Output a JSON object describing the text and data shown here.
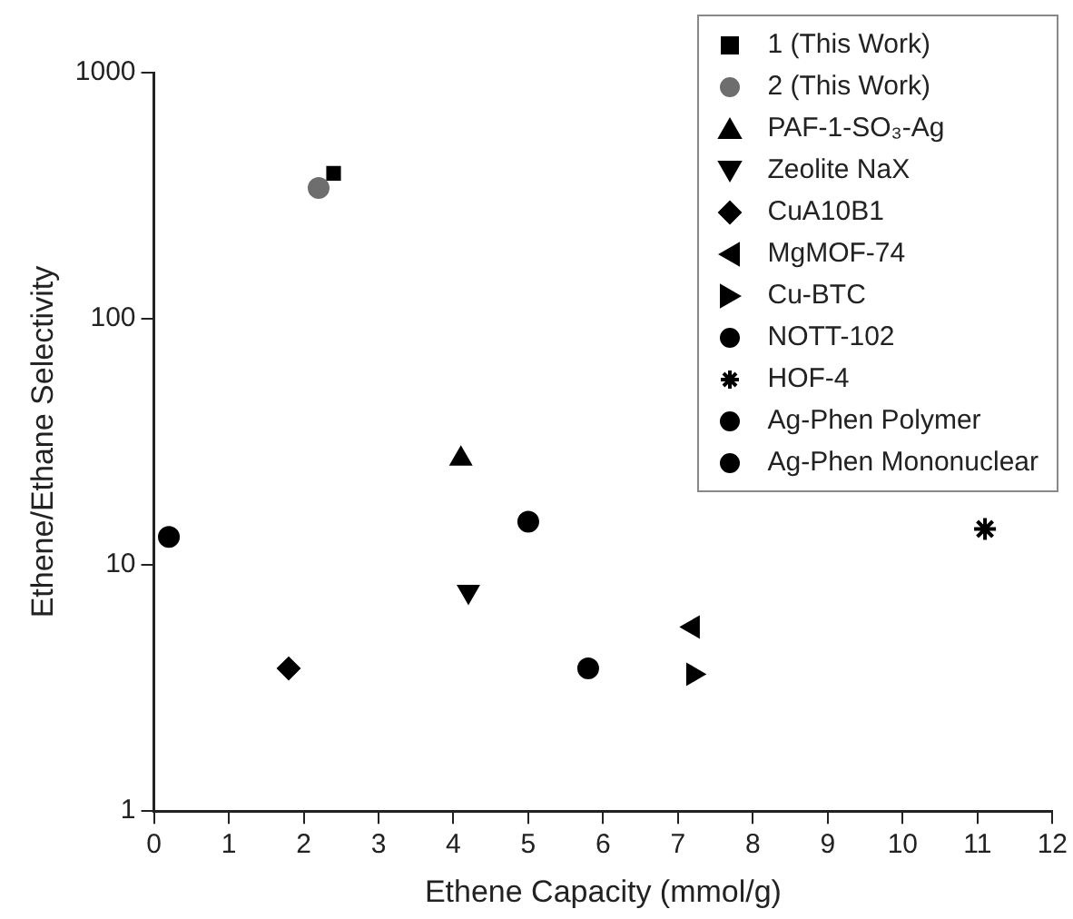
{
  "chart_data": {
    "type": "scatter",
    "xlabel": "Ethene Capacity (mmol/g)",
    "ylabel": "Ethene/Ethane Selectivity",
    "log": "y",
    "xlim": [
      0,
      12
    ],
    "xticks": [
      0,
      1,
      2,
      3,
      4,
      5,
      6,
      7,
      8,
      9,
      10,
      11,
      12
    ],
    "ylim": [
      1,
      1000
    ],
    "yticks": [
      1,
      10,
      100,
      1000
    ],
    "grid": false,
    "legend": "top right",
    "series": [
      {
        "name": "1 (This Work)",
        "color": "#000000",
        "marker": "square",
        "x": [
          2.4
        ],
        "values": [
          390
        ]
      },
      {
        "name": "2 (This Work)",
        "color": "#6e6e6e",
        "marker": "circle",
        "x": [
          2.2
        ],
        "values": [
          340
        ]
      },
      {
        "name": "PAF-1-SO₃-Ag",
        "color": "#000000",
        "marker": "triangle",
        "x": [
          4.1
        ],
        "values": [
          27
        ]
      },
      {
        "name": "Zeolite NaX",
        "color": "#000000",
        "marker": "triangle-down",
        "x": [
          4.2
        ],
        "values": [
          7.8
        ]
      },
      {
        "name": "CuA10B1",
        "color": "#000000",
        "marker": "diamond",
        "x": [
          1.8
        ],
        "values": [
          3.8
        ]
      },
      {
        "name": "MgMOF-74",
        "color": "#000000",
        "marker": "triangle-left",
        "x": [
          7.2
        ],
        "values": [
          5.6
        ]
      },
      {
        "name": "Cu-BTC",
        "color": "#000000",
        "marker": "triangle-right",
        "x": [
          7.2
        ],
        "values": [
          3.6
        ]
      },
      {
        "name": "NOTT-102",
        "color": "#000000",
        "marker": "circle",
        "x": [
          5.8
        ],
        "values": [
          3.8
        ]
      },
      {
        "name": "HOF-4",
        "color": "#000000",
        "marker": "cross",
        "x": [
          11.1
        ],
        "values": [
          14
        ]
      },
      {
        "name": "Ag-Phen Polymer",
        "color": "#000000",
        "marker": "circle",
        "x": [
          5.0
        ],
        "values": [
          15
        ]
      },
      {
        "name": "Ag-Phen Mononuclear",
        "color": "#000000",
        "marker": "circle",
        "x": [
          0.2
        ],
        "values": [
          13
        ]
      }
    ]
  }
}
